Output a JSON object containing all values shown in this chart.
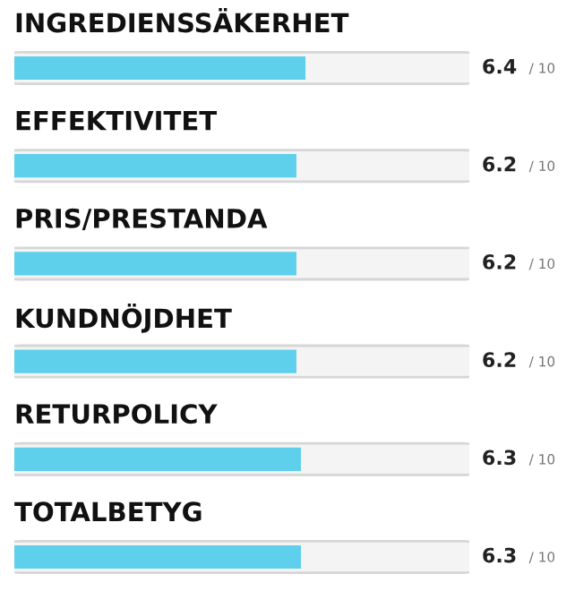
{
  "chart_data": {
    "type": "bar",
    "orientation": "horizontal",
    "categories": [
      "INGREDIENSSÄKERHET",
      "EFFEKTIVITET",
      "PRIS/PRESTANDA",
      "KUNDNÖJDHET",
      "RETURPOLICY",
      "TOTALBETYG"
    ],
    "values": [
      6.4,
      6.2,
      6.2,
      6.2,
      6.3,
      6.3
    ],
    "color": "#5fd0ec",
    "xlim": [
      0,
      10
    ],
    "tick_labels": false,
    "data_labels": true,
    "annotations": [
      "/ 10",
      "/ 10",
      "/ 10",
      "/ 10",
      "/ 10",
      "/ 10"
    ]
  }
}
